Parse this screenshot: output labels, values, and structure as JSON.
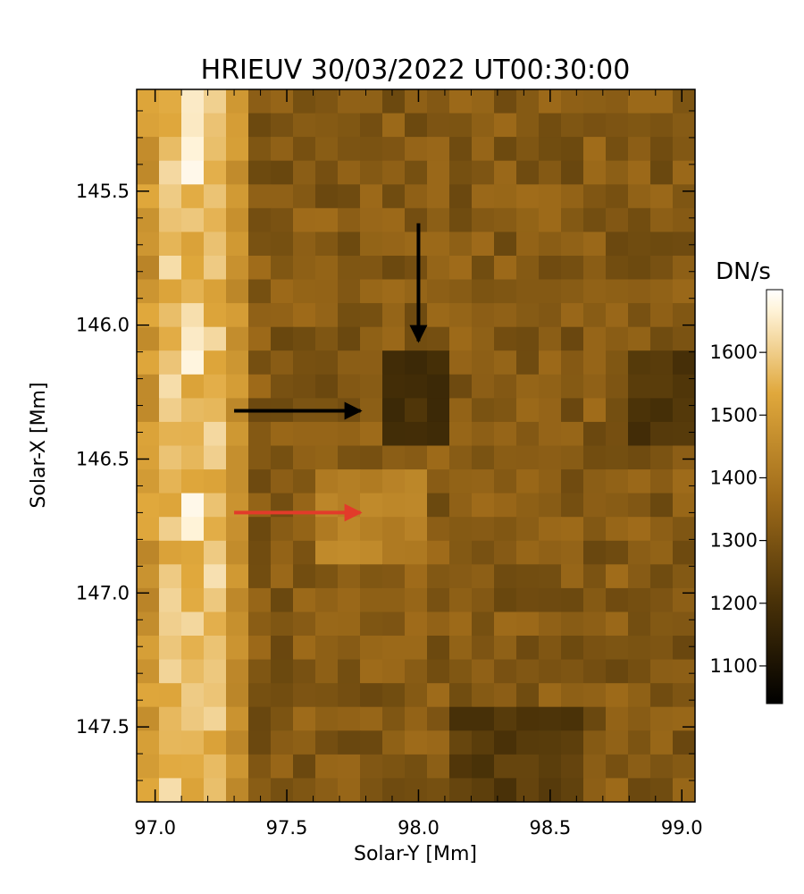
{
  "title": "HRIEUV 30/03/2022 UT00:30:00",
  "xlabel": "Solar-Y [Mm]",
  "ylabel": "Solar-X [Mm]",
  "colorbar": {
    "label": "DN/s",
    "min": 1040,
    "max": 1700,
    "tick_labels": [
      "1100",
      "1200",
      "1300",
      "1400",
      "1500",
      "1600"
    ],
    "tick_values": [
      1100,
      1200,
      1300,
      1400,
      1500,
      1600
    ],
    "colors": {
      "low": "#000000",
      "mid_dark": "#4a3208",
      "mid": "#a06c1a",
      "mid_light": "#e0a83c",
      "high": "#fff3d8",
      "top": "#ffffff"
    }
  },
  "x_axis": {
    "range": [
      96.93,
      99.05
    ],
    "tick_labels": [
      "97.0",
      "97.5",
      "98.0",
      "98.5",
      "99.0"
    ],
    "tick_values": [
      97.0,
      97.5,
      98.0,
      98.5,
      99.0
    ]
  },
  "y_axis": {
    "range": [
      145.12,
      147.78
    ],
    "tick_labels": [
      "145.5",
      "146.0",
      "146.5",
      "147.0",
      "147.5"
    ],
    "tick_values": [
      145.5,
      146.0,
      146.5,
      147.0,
      147.5
    ]
  },
  "arrows": [
    {
      "name": "vertical-black-arrow",
      "color": "#000000",
      "from": [
        98.0,
        145.62
      ],
      "to": [
        98.0,
        146.06
      ]
    },
    {
      "name": "horizontal-black-arrow",
      "color": "#000000",
      "from": [
        97.3,
        146.32
      ],
      "to": [
        97.78,
        146.32
      ]
    },
    {
      "name": "horizontal-red-arrow",
      "color": "#e23b2a",
      "from": [
        97.3,
        146.7
      ],
      "to": [
        97.78,
        146.7
      ]
    }
  ]
}
